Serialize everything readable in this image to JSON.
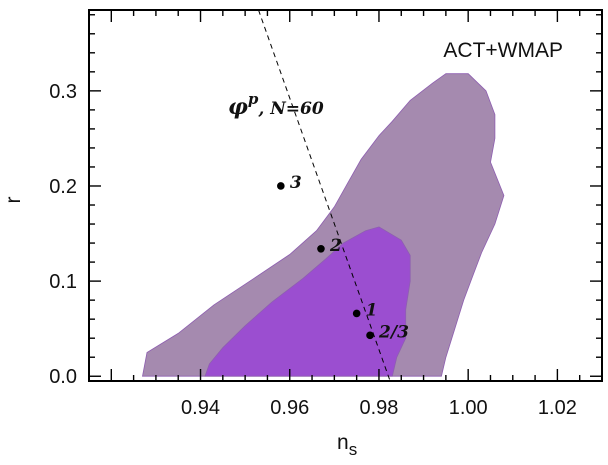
{
  "chart_data": {
    "type": "contour",
    "xlabel": "n",
    "xlabel_sub": "s",
    "ylabel": "r",
    "xlim": [
      0.915,
      1.03
    ],
    "ylim": [
      -0.005,
      0.385
    ],
    "xticks": [
      0.94,
      0.96,
      0.98,
      1.0,
      1.02
    ],
    "xtick_labels": [
      "0.94",
      "0.96",
      "0.98",
      "1.00",
      "1.02"
    ],
    "yticks": [
      0.0,
      0.1,
      0.2,
      0.3
    ],
    "ytick_labels": [
      "0.0",
      "0.1",
      "0.2",
      "0.3"
    ],
    "annotation": "ACT+WMAP",
    "regions": [
      {
        "level": "outer",
        "color": "#A58AAF",
        "points": [
          [
            0.927,
            0.0
          ],
          [
            0.928,
            0.025
          ],
          [
            0.935,
            0.045
          ],
          [
            0.943,
            0.075
          ],
          [
            0.952,
            0.103
          ],
          [
            0.96,
            0.128
          ],
          [
            0.966,
            0.153
          ],
          [
            0.97,
            0.178
          ],
          [
            0.973,
            0.203
          ],
          [
            0.976,
            0.228
          ],
          [
            0.98,
            0.253
          ],
          [
            0.983,
            0.268
          ],
          [
            0.987,
            0.29
          ],
          [
            0.992,
            0.308
          ],
          [
            0.995,
            0.318
          ],
          [
            1.0,
            0.318
          ],
          [
            1.004,
            0.3
          ],
          [
            1.006,
            0.275
          ],
          [
            1.006,
            0.25
          ],
          [
            1.005,
            0.225
          ],
          [
            1.008,
            0.19
          ],
          [
            1.006,
            0.16
          ],
          [
            1.003,
            0.13
          ],
          [
            1.001,
            0.105
          ],
          [
            0.999,
            0.08
          ],
          [
            0.997,
            0.05
          ],
          [
            0.995,
            0.02
          ],
          [
            0.994,
            0.0
          ]
        ]
      },
      {
        "level": "inner",
        "color": "#9B4ED0",
        "points": [
          [
            0.941,
            0.0
          ],
          [
            0.942,
            0.013
          ],
          [
            0.945,
            0.03
          ],
          [
            0.95,
            0.053
          ],
          [
            0.956,
            0.078
          ],
          [
            0.963,
            0.103
          ],
          [
            0.968,
            0.123
          ],
          [
            0.972,
            0.14
          ],
          [
            0.977,
            0.153
          ],
          [
            0.98,
            0.157
          ],
          [
            0.985,
            0.143
          ],
          [
            0.987,
            0.127
          ],
          [
            0.987,
            0.1
          ],
          [
            0.986,
            0.07
          ],
          [
            0.986,
            0.04
          ],
          [
            0.984,
            0.02
          ],
          [
            0.983,
            0.0
          ]
        ]
      }
    ],
    "series": [
      {
        "name": "φ^p, N=60",
        "style": "dashed",
        "x": [
          0.953,
          0.9825
        ],
        "y": [
          0.385,
          -0.005
        ]
      }
    ],
    "points": [
      {
        "label": "3",
        "x": 0.958,
        "y": 0.2
      },
      {
        "label": "2",
        "x": 0.967,
        "y": 0.134
      },
      {
        "label": "1",
        "x": 0.975,
        "y": 0.066
      },
      {
        "label": "2/3",
        "x": 0.978,
        "y": 0.043
      }
    ],
    "model_label": {
      "base": "φ",
      "sup": "p",
      "rest": ",  N=60"
    },
    "colors": {
      "outer": "#A58AAF",
      "inner": "#9B4ED0",
      "axes": "#000000"
    }
  }
}
